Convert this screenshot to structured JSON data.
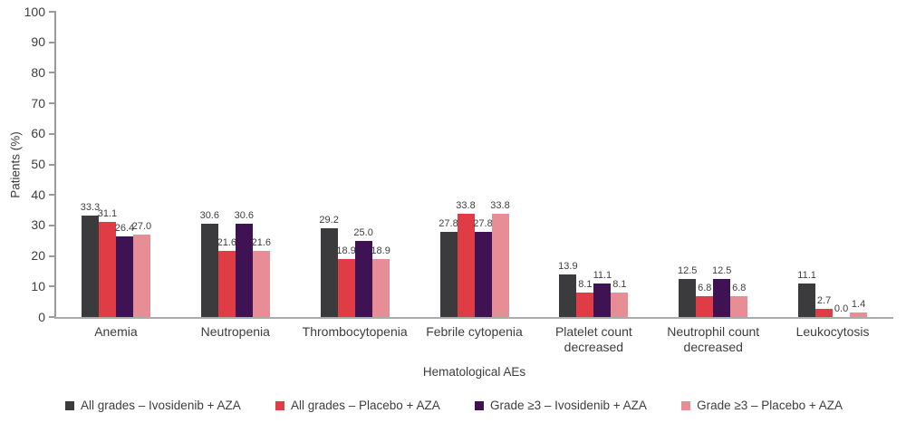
{
  "chart_data": {
    "type": "bar",
    "title": "",
    "xlabel": "Hematological AEs",
    "ylabel": "Patients (%)",
    "ylim": [
      0,
      100
    ],
    "yticks": [
      0,
      10,
      20,
      30,
      40,
      50,
      60,
      70,
      80,
      90,
      100
    ],
    "grid": false,
    "legend_position": "bottom",
    "value_labels": true,
    "value_label_decimals": 1,
    "axis_color": "#a0a0a0",
    "text_color": "#3d3d3d",
    "categories": [
      "Anemia",
      "Neutropenia",
      "Thrombocytopenia",
      "Febrile cytopenia",
      "Platelet count decreased",
      "Neutrophil count decreased",
      "Leukocytosis"
    ],
    "series": [
      {
        "name": "All grades – Ivosidenib + AZA",
        "color": "#3b3a3c",
        "values": [
          33.3,
          30.6,
          29.2,
          27.8,
          13.9,
          12.5,
          11.1
        ]
      },
      {
        "name": "All grades – Placebo + AZA",
        "color": "#e03c46",
        "values": [
          31.1,
          21.6,
          18.9,
          33.8,
          8.1,
          6.8,
          2.7
        ]
      },
      {
        "name": "Grade ≥3 – Ivosidenib + AZA",
        "color": "#3f1253",
        "values": [
          26.4,
          30.6,
          25.0,
          27.8,
          11.1,
          12.5,
          0.0
        ]
      },
      {
        "name": "Grade ≥3 – Placebo + AZA",
        "color": "#e78d96",
        "values": [
          27.0,
          21.6,
          18.9,
          33.8,
          8.1,
          6.8,
          1.4
        ]
      }
    ]
  }
}
